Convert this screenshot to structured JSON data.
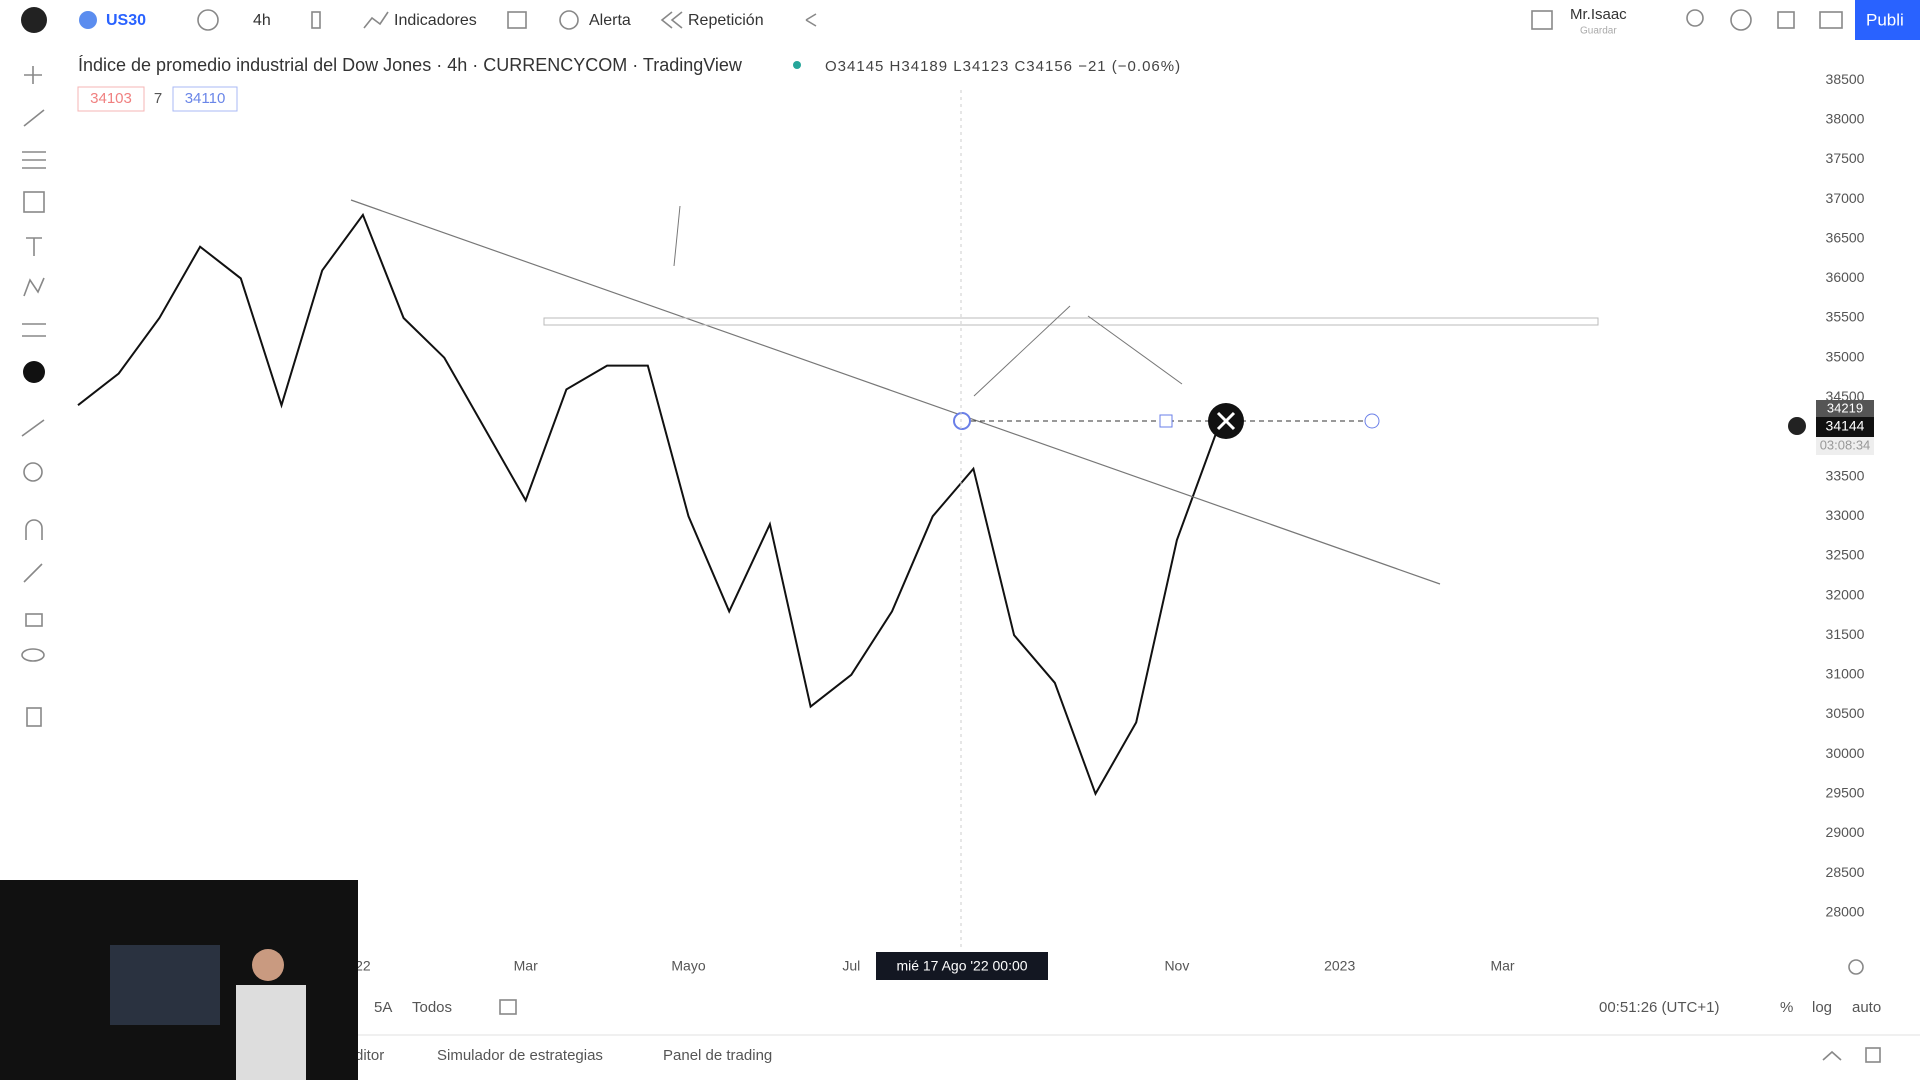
{
  "toolbar": {
    "symbol": "US30",
    "interval": "4h",
    "indicators": "Indicadores",
    "alert": "Alerta",
    "replay": "Repetición",
    "user": "Mr.Isaac",
    "save": "Guardar",
    "publish": "Publi"
  },
  "legend": {
    "title": "Índice de promedio industrial del Dow Jones · 4h · CURRENCYCOM · TradingView",
    "ohlc": "O34145 H34189 L34123 C34156 −21 (−0.06%)",
    "sell": "34103",
    "spread": "7",
    "buy": "34110"
  },
  "price_axis": {
    "high": "34219",
    "last": "34144",
    "countdown": "03:08:34"
  },
  "crosshair_date": "mié 17 Ago '22   00:00",
  "bottom": {
    "range_5y": "5A",
    "range_all": "Todos",
    "clock": "00:51:26 (UTC+1)",
    "percent": "%",
    "log": "log",
    "auto": "auto",
    "editor": "Editor",
    "strategy": "Simulador de estrategias",
    "trading": "Panel de trading"
  },
  "chart_data": {
    "type": "line",
    "color": "#111111",
    "categories": [
      null,
      null,
      null,
      null,
      null,
      null,
      null,
      "22",
      null,
      null,
      null,
      "Mar",
      null,
      null,
      null,
      "Mayo",
      null,
      null,
      null,
      "Jul",
      null,
      null,
      null,
      null,
      null,
      null,
      null,
      "Nov",
      null,
      null,
      null,
      "2023",
      null,
      null,
      null,
      "Mar",
      null
    ],
    "values": [
      34400,
      34800,
      35500,
      36400,
      36000,
      34400,
      36100,
      36800,
      35500,
      35000,
      34100,
      33200,
      34600,
      34900,
      34900,
      33000,
      31800,
      32900,
      30600,
      31000,
      31800,
      33000,
      33600,
      31500,
      30900,
      29500,
      30400,
      32700,
      34100,
      null,
      null,
      null,
      null,
      null,
      null,
      null,
      null
    ],
    "ylim": [
      27530,
      38880
    ],
    "yticks": [
      28000,
      28500,
      29000,
      29500,
      30000,
      30500,
      31000,
      31500,
      32000,
      32500,
      33000,
      33500,
      34000,
      34500,
      35000,
      35500,
      36000,
      36500,
      37000,
      37500,
      38000,
      38500
    ],
    "grid": false
  }
}
